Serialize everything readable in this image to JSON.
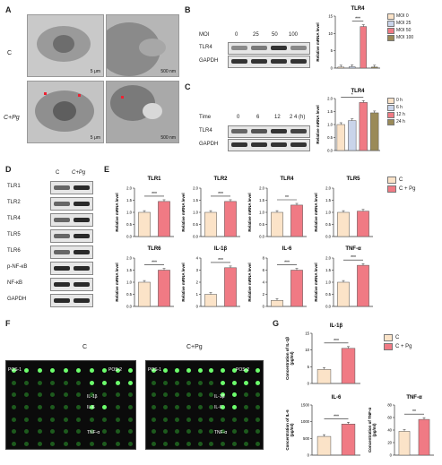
{
  "panelA": {
    "letter": "A",
    "row_labels": [
      "C",
      "C+Pg"
    ],
    "scale_labels": [
      "5 μm",
      "500 nm",
      "5 μm",
      "500 nm"
    ]
  },
  "panelB": {
    "letter": "B",
    "header_label": "MOI",
    "header_values": [
      "0",
      "25",
      "50",
      "100"
    ],
    "row_labels": [
      "TLR4",
      "GAPDH"
    ],
    "chart_title": "TLR4",
    "ylabel": "Relative mRNA level",
    "legend": [
      "MOI 0",
      "MOI 25",
      "MOI 50",
      "MOI 100"
    ],
    "sig": "***"
  },
  "panelC": {
    "letter": "C",
    "header_label": "Time",
    "header_values": [
      "0",
      "6",
      "12",
      "2 4 (h)"
    ],
    "row_labels": [
      "TLR4",
      "GAPDH"
    ],
    "chart_title": "TLR4",
    "ylabel": "Relative mRNA level",
    "legend": [
      "0 h",
      "6 h",
      "12 h",
      "24 h"
    ],
    "sig": "*"
  },
  "panelD": {
    "letter": "D",
    "cols": [
      "C",
      "C+Pg"
    ],
    "rows": [
      "TLR1",
      "TLR2",
      "TLR4",
      "TLR5",
      "TLR6",
      "p-NF-κB",
      "NF-κB",
      "GAPDH"
    ]
  },
  "panelE": {
    "letter": "E",
    "legend": [
      "C",
      "C + Pg"
    ],
    "ylabel": "Relative mRNA level",
    "charts": [
      {
        "title": "TLR1",
        "sig": "***"
      },
      {
        "title": "TLR2",
        "sig": "***"
      },
      {
        "title": "TLR4",
        "sig": "**"
      },
      {
        "title": "TLR5",
        "sig": ""
      },
      {
        "title": "TLR6",
        "sig": "***"
      },
      {
        "title": "IL-1β",
        "sig": "***"
      },
      {
        "title": "IL-6",
        "sig": "***"
      },
      {
        "title": "TNF-α",
        "sig": "***"
      }
    ]
  },
  "panelF": {
    "letter": "F",
    "cols": [
      "C",
      "C+Pg"
    ],
    "left_labels": [
      "POS-1",
      "POS-2",
      "IL-1β",
      "IL-6",
      "TNF-α"
    ],
    "right_labels": [
      "POS-1",
      "POS-2",
      "IL-1β",
      "IL-6",
      "TNF-α"
    ]
  },
  "panelG": {
    "letter": "G",
    "legend": [
      "C",
      "C + Pg"
    ],
    "charts": [
      {
        "title": "IL-1β",
        "ylabel": "Concentration of IL-1β (pg/ml)",
        "sig": "***"
      },
      {
        "title": "IL-6",
        "ylabel": "Concentration of IL-6 (pg/ml)",
        "sig": "***"
      },
      {
        "title": "TNF-α",
        "ylabel": "Concentration of TNF-α (pg/ml)",
        "sig": "**"
      }
    ]
  },
  "chart_data": [
    {
      "id": "B-TLR4",
      "type": "bar",
      "categories": [
        "MOI 0",
        "MOI 25",
        "MOI 50",
        "MOI 100"
      ],
      "values": [
        0.3,
        0.4,
        12.0,
        0.3
      ],
      "colors": [
        "#fbe3c8",
        "#c9d4ea",
        "#f07a84",
        "#9a8a58"
      ],
      "ylim": [
        0,
        15
      ],
      "yticks": [
        "0",
        "5",
        "10",
        "15"
      ]
    },
    {
      "id": "C-TLR4",
      "type": "bar",
      "categories": [
        "0 h",
        "6 h",
        "12 h",
        "24 h"
      ],
      "values": [
        1.0,
        1.15,
        1.85,
        1.45
      ],
      "colors": [
        "#fbe3c8",
        "#c9d4ea",
        "#f07a84",
        "#9a8a58"
      ],
      "ylim": [
        0,
        2.0
      ],
      "yticks": [
        "0.0",
        "0.5",
        "1.0",
        "1.5",
        "2.0"
      ]
    },
    {
      "id": "E-TLR1",
      "type": "bar",
      "categories": [
        "C",
        "C + Pg"
      ],
      "values": [
        1.0,
        1.45
      ],
      "ylim": [
        0,
        2.0
      ],
      "yticks": [
        "0.0",
        "0.5",
        "1.0",
        "1.5",
        "2.0"
      ]
    },
    {
      "id": "E-TLR2",
      "type": "bar",
      "categories": [
        "C",
        "C + Pg"
      ],
      "values": [
        1.0,
        1.45
      ],
      "ylim": [
        0,
        2.0
      ],
      "yticks": [
        "0.0",
        "0.5",
        "1.0",
        "1.5",
        "2.0"
      ]
    },
    {
      "id": "E-TLR4",
      "type": "bar",
      "categories": [
        "C",
        "C + Pg"
      ],
      "values": [
        1.0,
        1.3
      ],
      "ylim": [
        0,
        2.0
      ],
      "yticks": [
        "0.0",
        "0.5",
        "1.0",
        "1.5",
        "2.0"
      ]
    },
    {
      "id": "E-TLR5",
      "type": "bar",
      "categories": [
        "C",
        "C + Pg"
      ],
      "values": [
        1.0,
        1.05
      ],
      "ylim": [
        0,
        2.0
      ],
      "yticks": [
        "0.0",
        "0.5",
        "1.0",
        "1.5",
        "2.0"
      ]
    },
    {
      "id": "E-TLR6",
      "type": "bar",
      "categories": [
        "C",
        "C + Pg"
      ],
      "values": [
        1.0,
        1.5
      ],
      "ylim": [
        0,
        2.0
      ],
      "yticks": [
        "0.0",
        "0.5",
        "1.0",
        "1.5",
        "2.0"
      ]
    },
    {
      "id": "E-IL-1b",
      "type": "bar",
      "categories": [
        "C",
        "C + Pg"
      ],
      "values": [
        1.0,
        3.2
      ],
      "ylim": [
        0,
        4
      ],
      "yticks": [
        "0",
        "1",
        "2",
        "3",
        "4"
      ]
    },
    {
      "id": "E-IL-6",
      "type": "bar",
      "categories": [
        "C",
        "C + Pg"
      ],
      "values": [
        1.0,
        6.0
      ],
      "ylim": [
        0,
        8
      ],
      "yticks": [
        "0",
        "2",
        "4",
        "6",
        "8"
      ]
    },
    {
      "id": "E-TNFa",
      "type": "bar",
      "categories": [
        "C",
        "C + Pg"
      ],
      "values": [
        1.0,
        1.7
      ],
      "ylim": [
        0,
        2.0
      ],
      "yticks": [
        "0.0",
        "0.5",
        "1.0",
        "1.5",
        "2.0"
      ]
    },
    {
      "id": "G-IL-1b",
      "type": "bar",
      "categories": [
        "C",
        "C + Pg"
      ],
      "values": [
        4.2,
        10.5
      ],
      "ylim": [
        0,
        15
      ],
      "yticks": [
        "0",
        "5",
        "10",
        "15"
      ]
    },
    {
      "id": "G-IL-6",
      "type": "bar",
      "categories": [
        "C",
        "C + Pg"
      ],
      "values": [
        560,
        930
      ],
      "ylim": [
        0,
        1500
      ],
      "yticks": [
        "0",
        "500",
        "1000",
        "1500"
      ]
    },
    {
      "id": "G-TNFa",
      "type": "bar",
      "categories": [
        "C",
        "C + Pg"
      ],
      "values": [
        38,
        57
      ],
      "ylim": [
        0,
        80
      ],
      "yticks": [
        "0",
        "20",
        "40",
        "60",
        "80"
      ]
    }
  ],
  "colors": {
    "control": "#fbe3c8",
    "treated": "#f07a84",
    "bar_edge": "#555555"
  }
}
